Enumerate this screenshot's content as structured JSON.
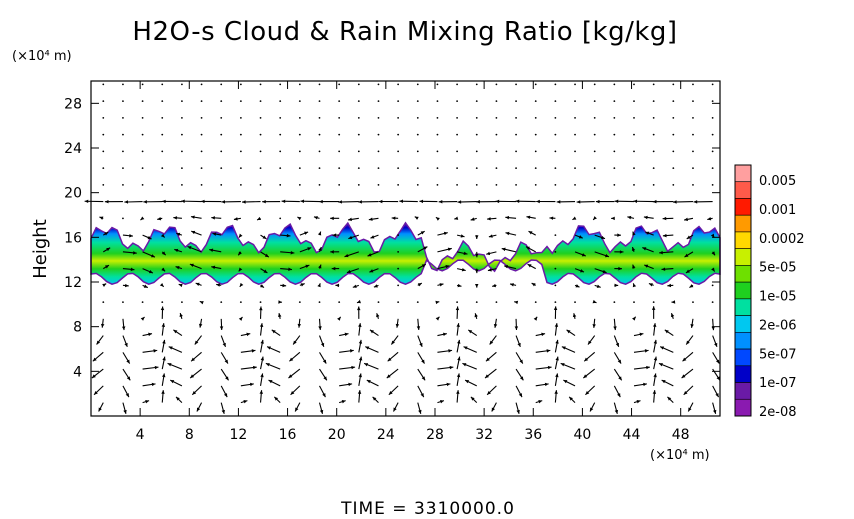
{
  "chart_data": {
    "type": "heatmap",
    "title": "H2O-s Cloud & Rain Mixing Ratio [kg/kg]",
    "x_unit": "(×10⁴ m)",
    "y_unit": "(×10⁴ m)",
    "ylabel": "Height",
    "xlim": [
      0,
      51.2
    ],
    "ylim": [
      0,
      30
    ],
    "x_ticks": [
      4,
      8,
      12,
      16,
      20,
      24,
      28,
      32,
      36,
      40,
      44,
      48
    ],
    "y_ticks": [
      4,
      8,
      12,
      16,
      20,
      24,
      28
    ],
    "time_label": "TIME  =  3310000.0",
    "legend": {
      "labels": [
        "0.005",
        "0.001",
        "0.0002",
        "5e-05",
        "1e-05",
        "2e-06",
        "5e-07",
        "1e-07",
        "2e-08"
      ],
      "colors": [
        "#ff9f9f",
        "#ff5a4a",
        "#ff1a00",
        "#ff9a00",
        "#ffd800",
        "#c8f000",
        "#6ee000",
        "#1fd01f",
        "#00e0a0",
        "#00c8f0",
        "#0090ff",
        "#0048ff",
        "#0000c8",
        "#6a1aa6",
        "#8a1ab0"
      ]
    },
    "cloud_layer": {
      "x_range": [
        0,
        51.2
      ],
      "y_base_km_x1e4": 12,
      "y_top_km_x1e4": 16.5,
      "description_values": []
    },
    "vectors": "wind field arrows"
  }
}
